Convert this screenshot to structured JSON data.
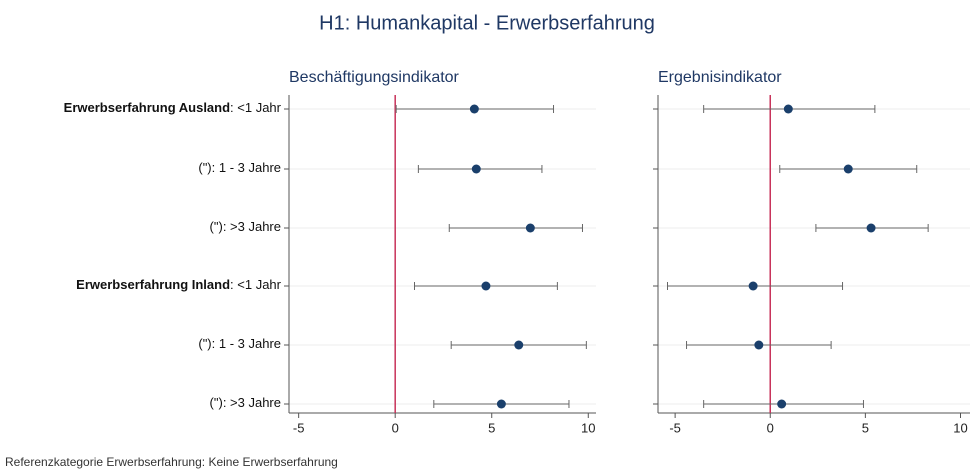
{
  "title": "H1: Humankapital - Erwerbserfahrung",
  "note": "Referenzkategorie Erwerbserfahrung: Keine Erwerbserfahrung",
  "chart_data": [
    {
      "type": "errorbar",
      "title": "Beschäftigungsindikator",
      "categories": [
        {
          "bold": "Erwerbserfahrung Ausland",
          "rest": ": <1 Jahr"
        },
        {
          "bold": null,
          "rest": "(\"): 1 - 3 Jahre"
        },
        {
          "bold": null,
          "rest": "(\"): >3 Jahre"
        },
        {
          "bold": "Erwerbserfahrung Inland",
          "rest": ": <1 Jahr"
        },
        {
          "bold": null,
          "rest": "(\"): 1 - 3 Jahre"
        },
        {
          "bold": null,
          "rest": "(\"): >3 Jahre"
        }
      ],
      "values": [
        4.1,
        4.2,
        7.0,
        4.7,
        6.4,
        5.5
      ],
      "lower": [
        0.05,
        1.2,
        2.8,
        1.0,
        2.9,
        2.0
      ],
      "upper": [
        8.2,
        7.6,
        9.7,
        8.4,
        9.9,
        9.0
      ],
      "color": "#1a3f6b",
      "xlim": [
        -5.5,
        10.4
      ],
      "xticks": [
        -5,
        0,
        5,
        10
      ],
      "xline": 0,
      "xline_color": "#c8325a",
      "grid": true
    },
    {
      "type": "errorbar",
      "title": "Ergebnisindikator",
      "values": [
        0.95,
        4.1,
        5.3,
        -0.9,
        -0.6,
        0.6
      ],
      "lower": [
        -3.5,
        0.5,
        2.4,
        -5.4,
        -4.4,
        -3.5
      ],
      "upper": [
        5.5,
        7.7,
        8.3,
        3.8,
        3.2,
        4.9
      ],
      "color": "#1a3f6b",
      "xlim": [
        -5.9,
        10.5
      ],
      "xticks": [
        -5,
        0,
        5,
        10
      ],
      "xline": 0,
      "xline_color": "#c8325a",
      "grid": true
    }
  ]
}
